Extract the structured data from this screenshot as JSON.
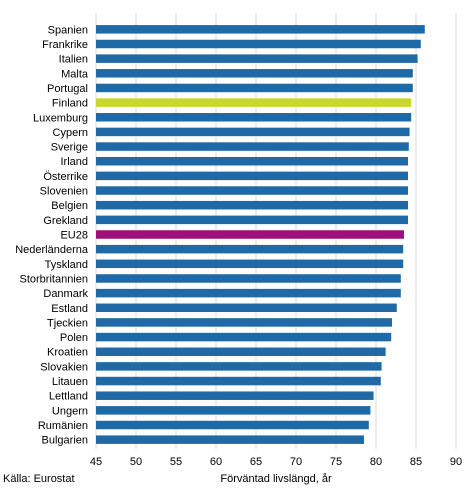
{
  "chart_data": {
    "type": "bar",
    "orientation": "horizontal",
    "title": "",
    "xlabel": "Förväntad livslängd, år",
    "ylabel": "",
    "source": "Källa: Eurostat",
    "xlim": [
      45,
      90
    ],
    "xticks": [
      45,
      50,
      55,
      60,
      65,
      70,
      75,
      80,
      85,
      90
    ],
    "grid": "vertical",
    "legend": "none",
    "colors": {
      "default": "#1f6aa6",
      "highlight": "#c8d82a",
      "eu": "#9c0f7c"
    },
    "categories": [
      "Spanien",
      "Frankrike",
      "Italien",
      "Malta",
      "Portugal",
      "Finland",
      "Luxemburg",
      "Cypern",
      "Sverige",
      "Irland",
      "Österrike",
      "Slovenien",
      "Belgien",
      "Grekland",
      "EU28",
      "Nederländerna",
      "Tyskland",
      "Storbritannien",
      "Danmark",
      "Estland",
      "Tjeckien",
      "Polen",
      "Kroatien",
      "Slovakien",
      "Litauen",
      "Lettland",
      "Ungern",
      "Rumänien",
      "Bulgarien"
    ],
    "values": [
      86.1,
      85.6,
      85.2,
      84.6,
      84.6,
      84.4,
      84.4,
      84.2,
      84.1,
      84.0,
      84.0,
      84.0,
      84.0,
      84.0,
      83.5,
      83.4,
      83.4,
      83.1,
      83.1,
      82.6,
      82.0,
      81.9,
      81.2,
      80.7,
      80.6,
      79.7,
      79.3,
      79.1,
      78.5
    ],
    "highlight": {
      "Finland": "highlight",
      "EU28": "eu"
    }
  }
}
